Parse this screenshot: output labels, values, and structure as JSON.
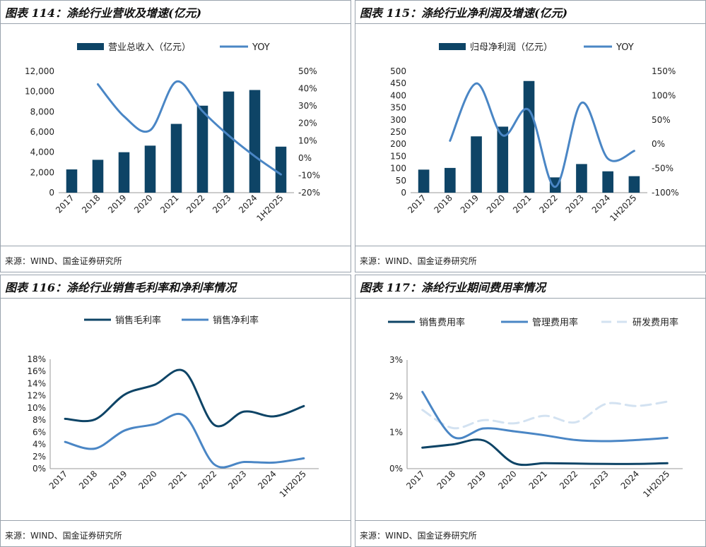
{
  "source_label": "来源：WIND、国金证券研究所",
  "chart_data": [
    {
      "id": "fig114",
      "title": "图表 114：涤纶行业营收及增速(亿元)",
      "type": "bar+line",
      "categories": [
        "2017",
        "2018",
        "2019",
        "2020",
        "2021",
        "2022",
        "2023",
        "2024",
        "1H2025"
      ],
      "series": [
        {
          "name": "营业总收入（亿元）",
          "type": "bar",
          "axis": "left",
          "values": [
            2300,
            3250,
            4000,
            4650,
            6800,
            8600,
            10000,
            10150,
            4550
          ]
        },
        {
          "name": "YOY",
          "type": "line",
          "axis": "right",
          "values": [
            null,
            42.5,
            24,
            16,
            44,
            27,
            13,
            1,
            -9.5
          ]
        }
      ],
      "y_left": {
        "min": 0,
        "max": 12000,
        "ticks": [
          0,
          2000,
          4000,
          6000,
          8000,
          10000,
          12000
        ],
        "tick_labels": [
          "0",
          "2,000",
          "4,000",
          "6,000",
          "8,000",
          "10,000",
          "12,000"
        ]
      },
      "y_right": {
        "min": -20,
        "max": 50,
        "ticks": [
          -20,
          -10,
          0,
          10,
          20,
          30,
          40,
          50
        ],
        "tick_labels": [
          "-20%",
          "-10%",
          "0%",
          "10%",
          "20%",
          "30%",
          "40%",
          "50%"
        ]
      },
      "source": "来源：WIND、国金证券研究所"
    },
    {
      "id": "fig115",
      "title": "图表 115：涤纶行业净利润及增速(亿元)",
      "type": "bar+line",
      "categories": [
        "2017",
        "2018",
        "2019",
        "2020",
        "2021",
        "2022",
        "2023",
        "2024",
        "1H2025"
      ],
      "series": [
        {
          "name": "归母净利润（亿元）",
          "type": "bar",
          "axis": "left",
          "values": [
            95,
            102,
            232,
            272,
            460,
            63,
            118,
            88,
            68
          ]
        },
        {
          "name": "YOY",
          "type": "line",
          "axis": "right",
          "values": [
            null,
            7,
            125,
            18,
            70,
            -88,
            85,
            -30,
            -14
          ]
        }
      ],
      "y_left": {
        "min": 0,
        "max": 500,
        "ticks": [
          0,
          50,
          100,
          150,
          200,
          250,
          300,
          350,
          400,
          450,
          500
        ],
        "tick_labels": [
          "0",
          "50",
          "100",
          "150",
          "200",
          "250",
          "300",
          "350",
          "400",
          "450",
          "500"
        ]
      },
      "y_right": {
        "min": -100,
        "max": 150,
        "ticks": [
          -100,
          -50,
          0,
          50,
          100,
          150
        ],
        "tick_labels": [
          "-100%",
          "-50%",
          "0%",
          "50%",
          "100%",
          "150%"
        ]
      },
      "source": "来源：WIND、国金证券研究所"
    },
    {
      "id": "fig116",
      "title": "图表 116：涤纶行业销售毛利率和净利率情况",
      "type": "line",
      "categories": [
        "2017",
        "2018",
        "2019",
        "2020",
        "2021",
        "2022",
        "2023",
        "2024",
        "1H2025"
      ],
      "series": [
        {
          "name": "销售毛利率",
          "values": [
            8.2,
            8.1,
            12.2,
            13.8,
            16.0,
            7.2,
            9.4,
            8.6,
            10.3
          ]
        },
        {
          "name": "销售净利率",
          "values": [
            4.4,
            3.3,
            6.3,
            7.3,
            8.7,
            0.7,
            1.1,
            1.0,
            1.7
          ]
        }
      ],
      "y": {
        "min": 0,
        "max": 18,
        "ticks": [
          0,
          2,
          4,
          6,
          8,
          10,
          12,
          14,
          16,
          18
        ],
        "tick_labels": [
          "0%",
          "2%",
          "4%",
          "6%",
          "8%",
          "10%",
          "12%",
          "14%",
          "16%",
          "18%"
        ]
      },
      "source": "来源：WIND、国金证券研究所"
    },
    {
      "id": "fig117",
      "title": "图表 117：涤纶行业期间费用率情况",
      "type": "line",
      "categories": [
        "2017",
        "2018",
        "2019",
        "2020",
        "2021",
        "2022",
        "2023",
        "2024",
        "1H2025"
      ],
      "series": [
        {
          "name": "销售费用率",
          "values": [
            0.58,
            0.67,
            0.78,
            0.15,
            0.15,
            0.14,
            0.13,
            0.13,
            0.15
          ]
        },
        {
          "name": "管理费用率",
          "values": [
            2.12,
            0.88,
            1.11,
            1.03,
            0.92,
            0.79,
            0.76,
            0.79,
            0.85
          ]
        },
        {
          "name": "研发费用率",
          "values": [
            1.62,
            1.12,
            1.34,
            1.25,
            1.46,
            1.28,
            1.79,
            1.73,
            1.85
          ]
        }
      ],
      "y": {
        "min": 0,
        "max": 3,
        "ticks": [
          0,
          1,
          2,
          3
        ],
        "tick_labels": [
          "0%",
          "1%",
          "2%",
          "3%"
        ]
      },
      "source": "来源：WIND、国金证券研究所"
    }
  ],
  "colors": {
    "dark_navy": "#0e4466",
    "mid_blue": "#4a86c5",
    "light_blue": "#d3e2f1",
    "axis": "#999999"
  }
}
